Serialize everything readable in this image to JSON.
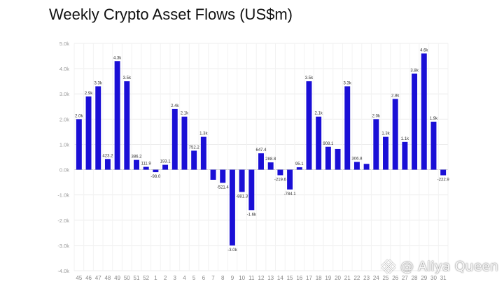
{
  "chart_data": {
    "type": "bar",
    "title": "Weekly Crypto Asset Flows (US$m)",
    "xlabel": "",
    "ylabel": "",
    "ylim": [
      -4000,
      5000
    ],
    "yticks": [
      5000,
      4000,
      3000,
      2000,
      1000,
      0,
      -1000,
      -2000,
      -3000,
      -4000
    ],
    "ytick_labels": [
      "5.0k",
      "4.0k",
      "3.0k",
      "2.0k",
      "1.0k",
      "0.0k",
      "-1.0k",
      "-2.0k",
      "-3.0k",
      "-4.0k"
    ],
    "grid": true,
    "bar_color": "#1a0fd6",
    "categories": [
      "45",
      "46",
      "47",
      "48",
      "49",
      "50",
      "51",
      "52",
      "1",
      "2",
      "3",
      "4",
      "5",
      "6",
      "7",
      "8",
      "9",
      "10",
      "11",
      "12",
      "13",
      "14",
      "15",
      "16",
      "17",
      "18",
      "19",
      "20",
      "21",
      "22",
      "23",
      "24",
      "25",
      "26",
      "27",
      "28",
      "29",
      "30",
      "31"
    ],
    "values": [
      2000,
      2900,
      3300,
      423.2,
      4300,
      3500,
      386.2,
      111.9,
      -98.0,
      193.1,
      2400,
      2100,
      752.2,
      1300,
      -400,
      -521.4,
      -3000,
      -881.3,
      -1600,
      647.4,
      288.8,
      -219.6,
      -784.1,
      95.1,
      3500,
      2100,
      908.1,
      820,
      3300,
      306.8,
      230,
      2000,
      1300,
      2800,
      1100,
      3800,
      4600,
      1900,
      -222.9
    ],
    "labels": [
      "2.0k",
      "2.9k",
      "3.3k",
      "423.2",
      "4.3k",
      "3.5k",
      "386.2",
      "111.9",
      "-98.0",
      "193.1",
      "2.4k",
      "2.1k",
      "752.2",
      "1.3k",
      "",
      "-521.4",
      "-3.0k",
      "-881.3",
      "-1.6k",
      "647.4",
      "288.8",
      "-219.6",
      "-784.1",
      "95.1",
      "3.5k",
      "2.1k",
      "908.1",
      "",
      "3.3k",
      "306.8",
      "",
      "2.0k",
      "1.3k",
      "2.8k",
      "1.1k",
      "3.8k",
      "4.6k",
      "1.9k",
      "-222.9"
    ]
  },
  "watermark": {
    "text": "@ Aliya Queen",
    "icon": "binance-square-logo-icon"
  }
}
